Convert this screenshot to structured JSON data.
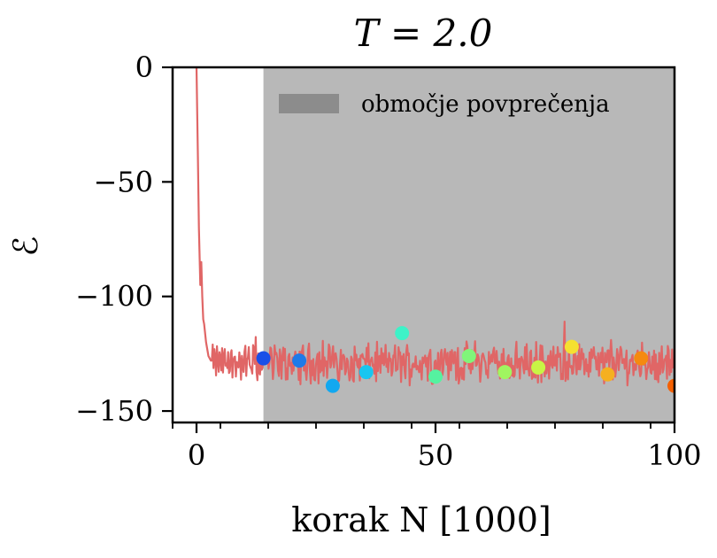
{
  "chart_data": {
    "type": "line",
    "title": "T = 2.0",
    "xlabel": "korak N [1000]",
    "ylabel": "ℰ",
    "xlim": [
      -5,
      100
    ],
    "ylim": [
      -155,
      0
    ],
    "xticks": [
      0,
      50,
      100
    ],
    "yticks": [
      0,
      -50,
      -100,
      -150
    ],
    "xtick_labels": [
      "0",
      "50",
      "100"
    ],
    "ytick_labels": [
      "0",
      "−50",
      "−100",
      "−150"
    ],
    "grid": false,
    "legend_position": "top-right",
    "shaded_region": {
      "label": "območje povprečenja",
      "x_start": 14,
      "x_end": 100,
      "color": "#b8b8b8",
      "legend_color": "#8c8c8c"
    },
    "series": [
      {
        "style": "line",
        "color": "#e06666",
        "mean_after_equilibration": -129,
        "noise_band": [
          -142,
          -110
        ],
        "x": [
          0,
          0.3,
          0.5,
          0.8,
          1.0,
          1.2,
          1.4,
          1.6,
          2.0,
          2.5,
          3.0
        ],
        "y": [
          0,
          -40,
          -70,
          -95,
          -85,
          -100,
          -110,
          -112,
          -120,
          -126,
          -128
        ]
      },
      {
        "style": "scatter",
        "x": [
          14,
          21.5,
          28.5,
          35.5,
          43,
          50,
          57,
          64.5,
          71.5,
          78.5,
          86,
          93,
          100
        ],
        "y": [
          -127,
          -128,
          -139,
          -133,
          -116,
          -135,
          -126,
          -133,
          -131,
          -122,
          -134,
          -127,
          -139
        ],
        "colors": [
          "#1a4fe8",
          "#1f7ae8",
          "#12a8f0",
          "#18c6f0",
          "#3df2c8",
          "#55f2a0",
          "#80f57a",
          "#a0f560",
          "#c8f545",
          "#f5e030",
          "#f5b020",
          "#f58a10",
          "#f56000"
        ]
      }
    ]
  }
}
